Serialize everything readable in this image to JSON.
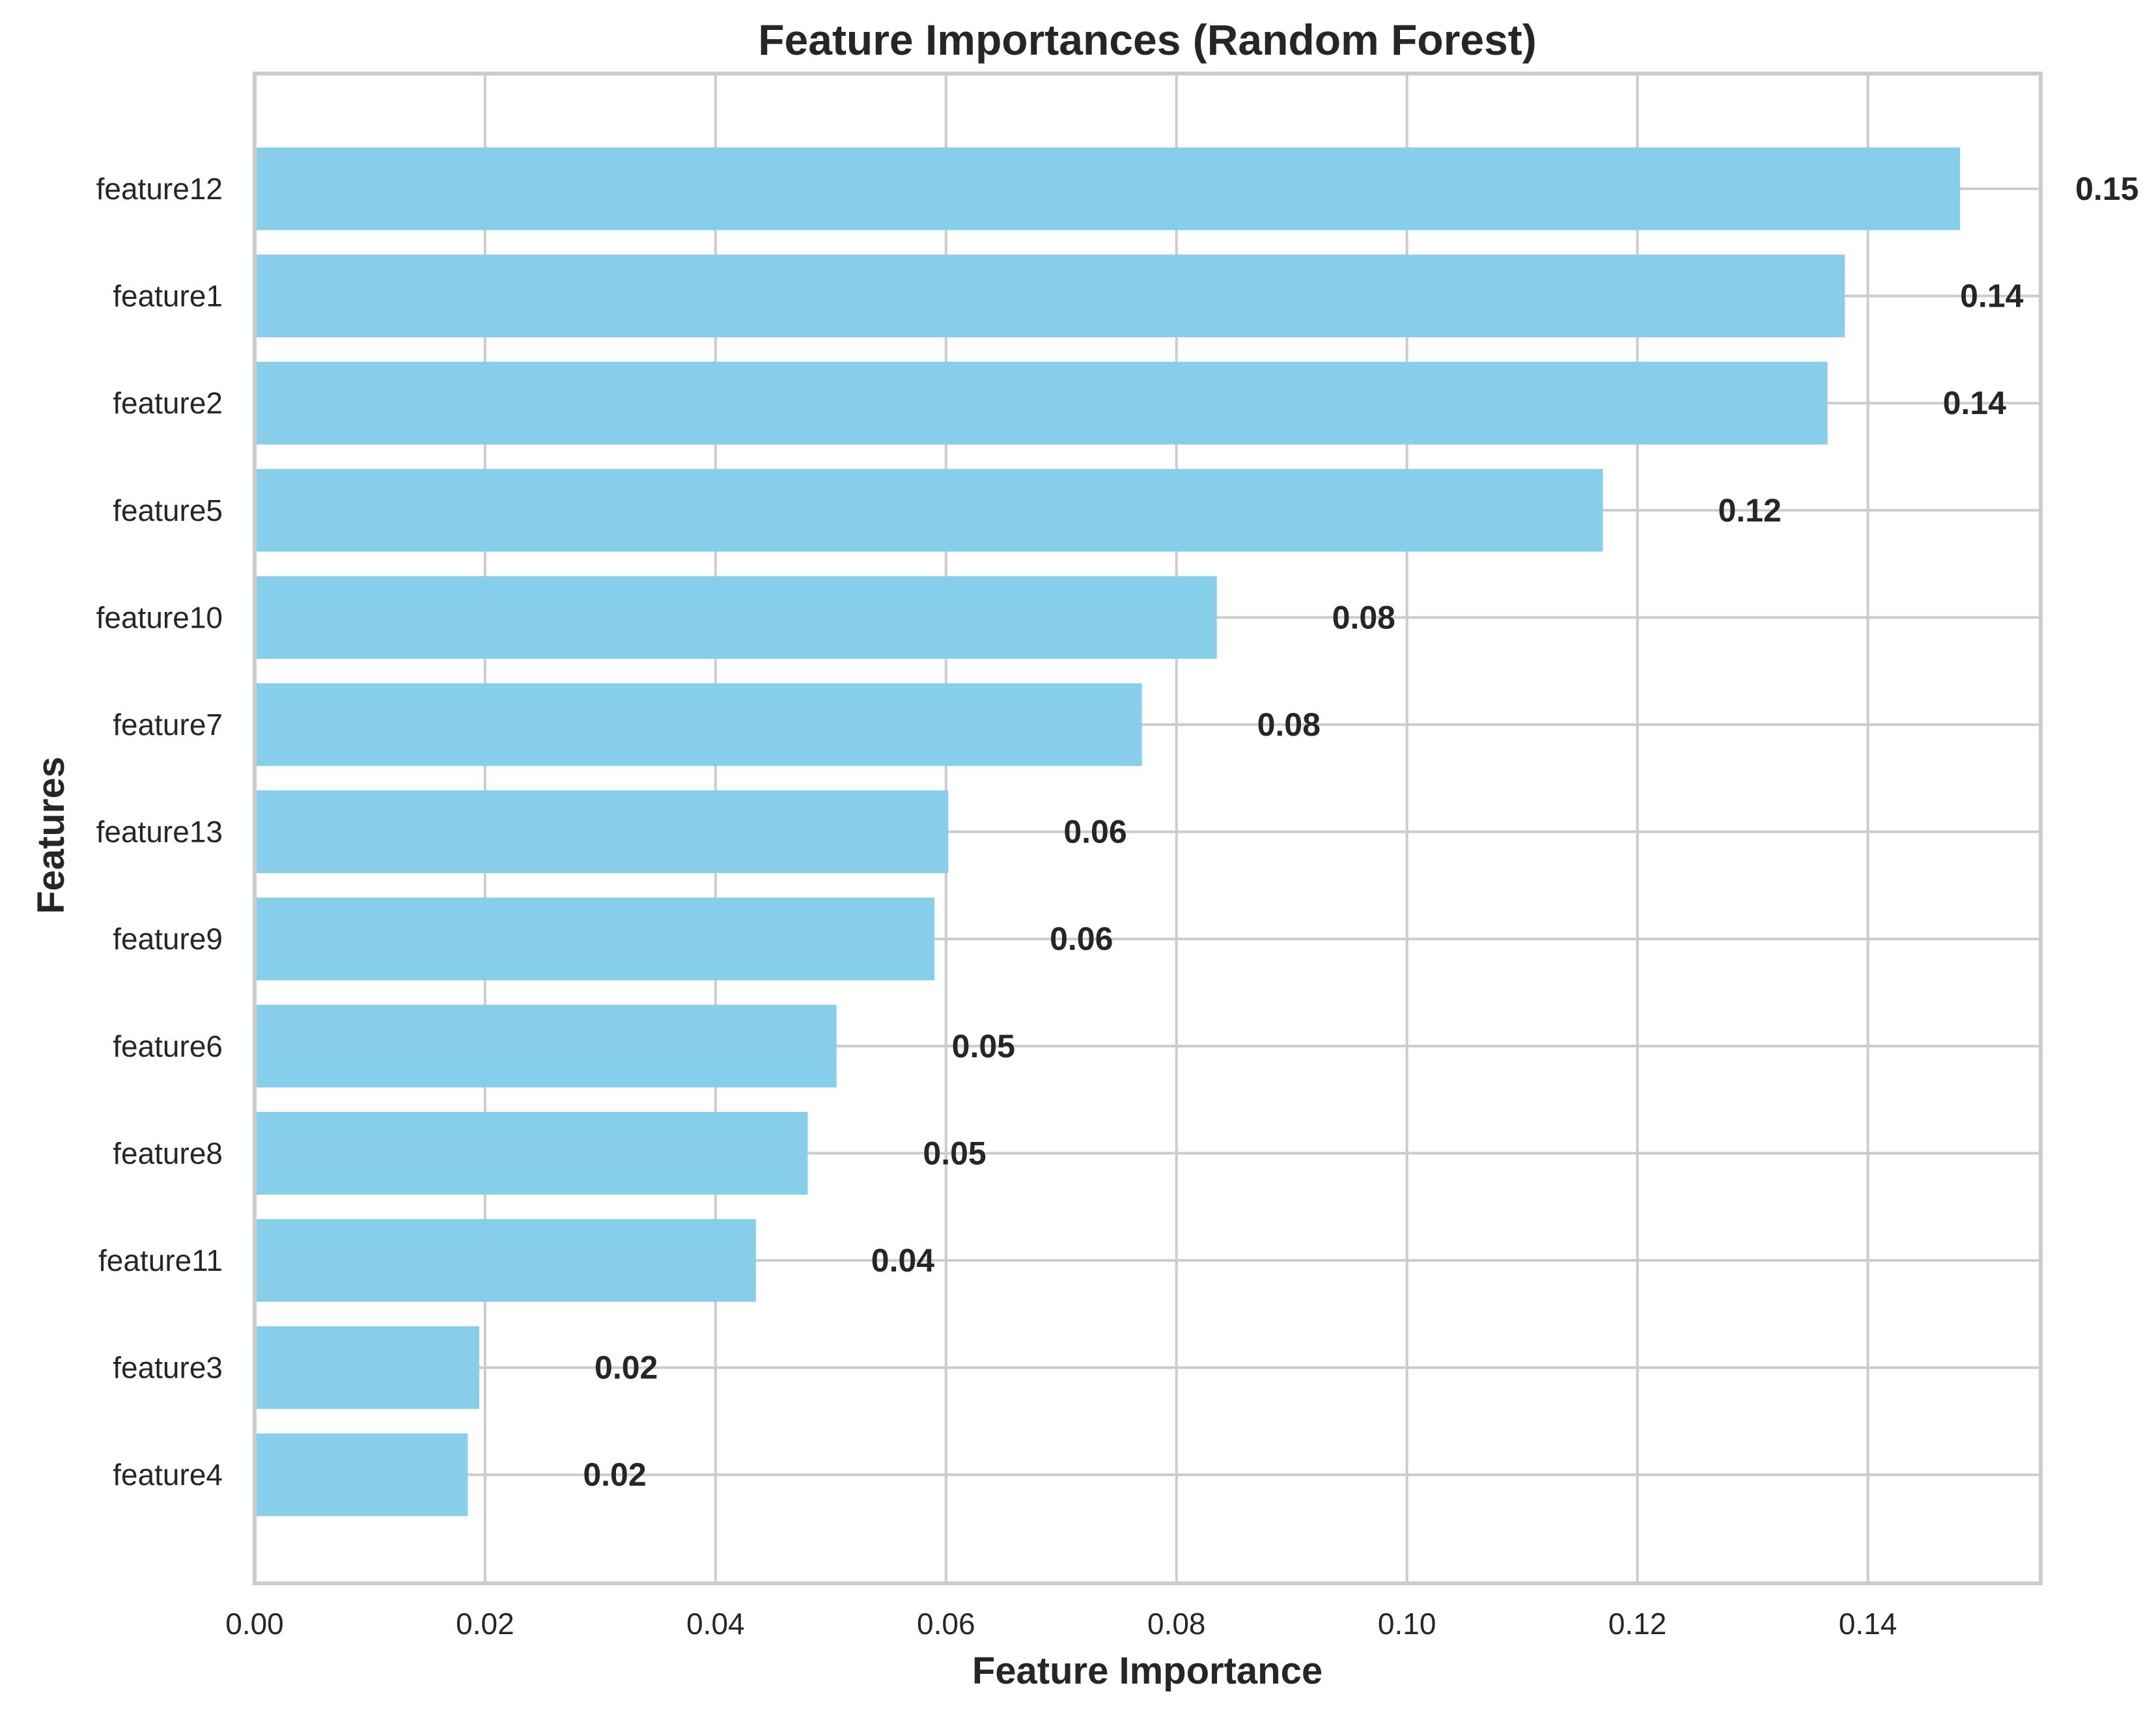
{
  "chart_data": {
    "type": "bar",
    "orientation": "horizontal",
    "title": "Feature Importances (Random Forest)",
    "xlabel": "Feature Importance",
    "ylabel": "Features",
    "xlim": [
      0,
      0.155
    ],
    "xticks": [
      0.0,
      0.02,
      0.04,
      0.06,
      0.08,
      0.1,
      0.12,
      0.14
    ],
    "xtick_labels": [
      "0.00",
      "0.02",
      "0.04",
      "0.06",
      "0.08",
      "0.10",
      "0.12",
      "0.14"
    ],
    "grid": true,
    "categories": [
      "feature12",
      "feature1",
      "feature2",
      "feature5",
      "feature10",
      "feature7",
      "feature13",
      "feature9",
      "feature6",
      "feature8",
      "feature11",
      "feature3",
      "feature4"
    ],
    "values": [
      0.148,
      0.138,
      0.1365,
      0.117,
      0.0835,
      0.077,
      0.0602,
      0.059,
      0.0505,
      0.048,
      0.0435,
      0.0195,
      0.0185
    ],
    "value_labels": [
      "0.15",
      "0.14",
      "0.14",
      "0.12",
      "0.08",
      "0.08",
      "0.06",
      "0.06",
      "0.05",
      "0.05",
      "0.04",
      "0.02",
      "0.02"
    ],
    "colors": {
      "bar": "#87ceeb",
      "grid": "#cccccc",
      "frame": "#cccccc",
      "text": "#262626"
    }
  }
}
